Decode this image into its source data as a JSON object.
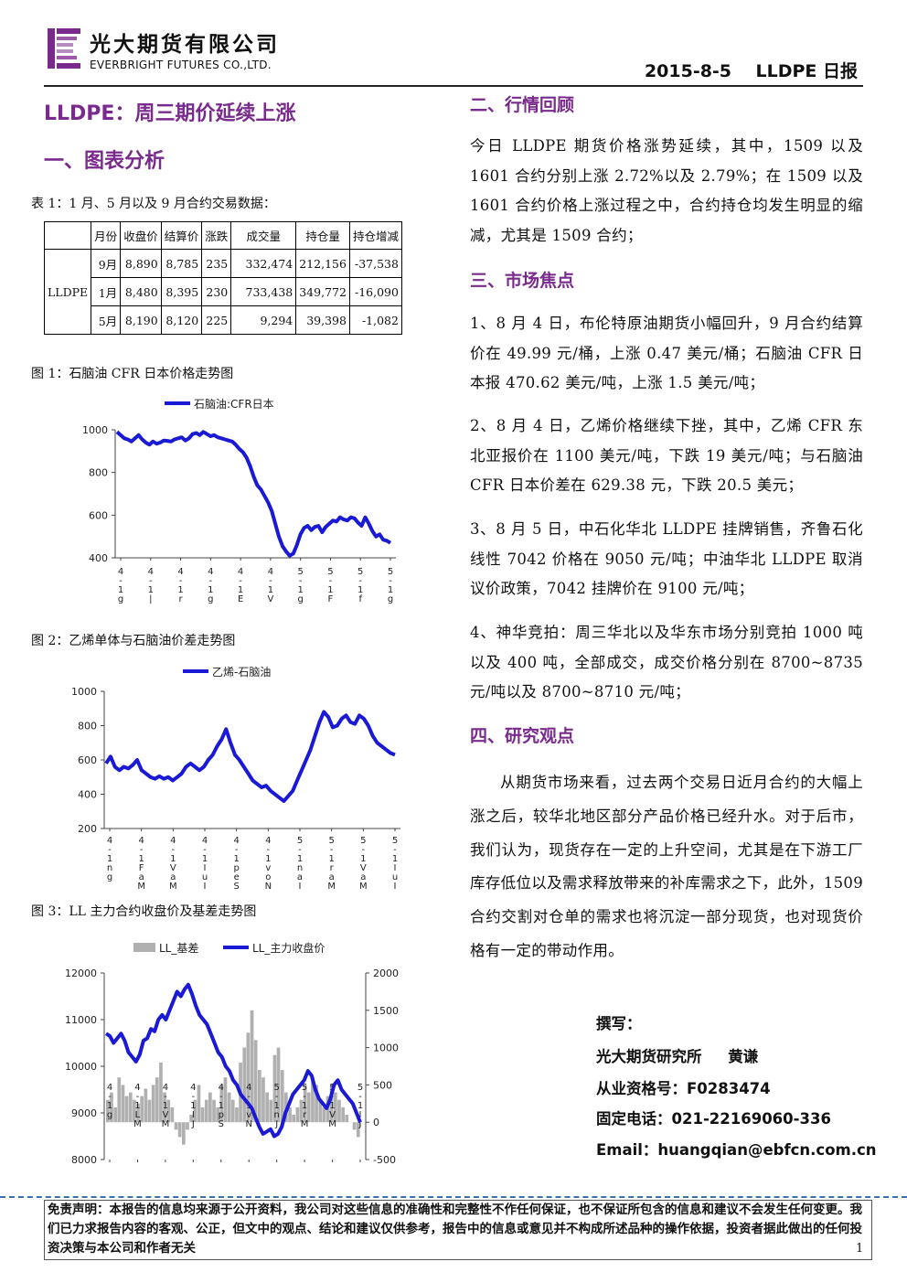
{
  "header": {
    "company_cn": "光大期货有限公司",
    "company_en": "EVERBRIGHT FUTURES CO.,LTD.",
    "report_id": "2015-8-5    LLDPE 日报",
    "logo_color": "#7a2a8c"
  },
  "title": "LLDPE：周三期价延续上涨",
  "section1": {
    "heading": "一、图表分析"
  },
  "table": {
    "caption": "表 1：1 月、5 月以及 9 月合约交易数据：",
    "headers": [
      "月份",
      "收盘价",
      "结算价",
      "涨跌",
      "成交量",
      "持仓量",
      "持仓增减"
    ],
    "product": "LLDPE",
    "rows": [
      [
        "9月",
        "8,890",
        "8,785",
        "235",
        "332,474",
        "212,156",
        "-37,538"
      ],
      [
        "1月",
        "8,480",
        "8,395",
        "230",
        "733,438",
        "349,772",
        "-16,090"
      ],
      [
        "5月",
        "8,190",
        "8,120",
        "225",
        "9,294",
        "39,398",
        "-1,082"
      ]
    ]
  },
  "chart_data": [
    {
      "type": "line",
      "caption": "图 1：石脑油 CFR 日本价格走势图",
      "series": [
        {
          "name": "石脑油:CFR日本",
          "color": "#1a1ad6"
        }
      ],
      "y_ticks": [
        "1000",
        "800",
        "600",
        "400"
      ],
      "ylim": [
        400,
        1000
      ],
      "x_tick_labels": [
        "4\n-\n1\ng",
        "4\n-\n1\n|",
        "4\n-\n1\nr",
        "4\n-\n1\ng",
        "4\n-\n1\nE",
        "4\n-\n1\nV",
        "5\n-\n1\ng",
        "5\n-\n1\nF",
        "5\n-\n1\nf",
        "5\n-\n1\ng"
      ],
      "points": [
        990,
        975,
        960,
        955,
        945,
        960,
        975,
        955,
        940,
        930,
        945,
        935,
        940,
        950,
        948,
        945,
        955,
        960,
        965,
        950,
        960,
        980,
        985,
        975,
        990,
        980,
        970,
        975,
        965,
        960,
        955,
        950,
        945,
        930,
        910,
        895,
        870,
        830,
        780,
        740,
        720,
        690,
        660,
        620,
        560,
        500,
        455,
        430,
        410,
        420,
        460,
        510,
        540,
        550,
        530,
        545,
        550,
        520,
        545,
        560,
        575,
        570,
        590,
        580,
        575,
        590,
        585,
        565,
        550,
        590,
        560,
        525,
        500,
        510,
        485,
        480,
        470
      ],
      "legend_position": "top"
    },
    {
      "type": "line",
      "caption": "图 2：乙烯单体与石脑油价差走势图",
      "series": [
        {
          "name": "乙烯-石脑油",
          "color": "#1a1ad6"
        }
      ],
      "y_ticks": [
        "1000",
        "800",
        "600",
        "400",
        "200"
      ],
      "ylim": [
        200,
        1000
      ],
      "x_tick_labels": [
        "4\n-\n1\nn\ng",
        "4\n-\n1\nF\na\nM",
        "4\n-\n1\nV\na\nM",
        "4\n-\n1\nI\nu\nJ",
        "4\n-\n1\np\ne\nS",
        "4\n-\n1\nv\no\nN",
        "5\n-\n1\nn\na\nJ",
        "5\n-\n1\nr\na\nM",
        "5\n-\n1\nV\na\nM",
        "5\n-\n1\nI\nu\nJ"
      ],
      "points": [
        580,
        620,
        560,
        540,
        560,
        550,
        570,
        600,
        540,
        520,
        500,
        490,
        505,
        490,
        500,
        480,
        500,
        520,
        560,
        580,
        560,
        540,
        560,
        600,
        630,
        680,
        720,
        780,
        700,
        630,
        600,
        560,
        520,
        480,
        460,
        440,
        450,
        420,
        400,
        380,
        360,
        390,
        420,
        480,
        540,
        600,
        660,
        740,
        820,
        880,
        850,
        790,
        800,
        840,
        860,
        820,
        810,
        860,
        840,
        800,
        740,
        700,
        680,
        660,
        640,
        630
      ],
      "legend_position": "top"
    },
    {
      "type": "line",
      "caption": "图 3：LL 主力合约收盘价及基差走势图",
      "series": [
        {
          "name": "LL_基差",
          "color": "#b0b0b0",
          "axis": "right"
        },
        {
          "name": "LL_主力收盘价",
          "color": "#1a1ad6",
          "axis": "left"
        }
      ],
      "y_ticks_left": [
        "12000",
        "11000",
        "10000",
        "9000",
        "8000"
      ],
      "y_ticks_right": [
        "2000",
        "1500",
        "1000",
        "500",
        "0",
        "-500"
      ],
      "ylim_left": [
        8000,
        12000
      ],
      "ylim_right": [
        -500,
        2000
      ],
      "x_tick_labels": [
        "4\n-\n1\ng",
        "4\n-\n1\nL\nM",
        "4\n-\n1\nV\nM",
        "4\n-\n1\nI\nJ",
        "4\n-\n1\np\nS",
        "4\n-\n1\nv\nN",
        "5\n-\n1\nn\nJ",
        "5\n-\n1\nr\nM",
        "5\n-\n1\nV\nM",
        "5\n-\n1\nI\nJ"
      ],
      "price": [
        10700,
        10650,
        10500,
        10600,
        10700,
        10550,
        10300,
        10200,
        10100,
        10250,
        10550,
        10600,
        10800,
        10750,
        11000,
        11100,
        11000,
        11200,
        11400,
        11600,
        11500,
        11650,
        11750,
        11550,
        11300,
        11100,
        11000,
        10900,
        10700,
        10500,
        10300,
        10200,
        10000,
        9900,
        9700,
        9600,
        9400,
        9300,
        9200,
        9100,
        8900,
        8700,
        8550,
        8600,
        8650,
        8500,
        8550,
        8700,
        9000,
        9200,
        9400,
        9500,
        9600,
        9700,
        9900,
        9800,
        9500,
        9300,
        9200,
        9100,
        9300,
        9600,
        9700,
        9500,
        9400,
        9300,
        9200,
        9000,
        8800
      ],
      "basis": [
        300,
        400,
        200,
        600,
        500,
        350,
        400,
        300,
        250,
        350,
        450,
        300,
        500,
        600,
        800,
        400,
        300,
        200,
        -100,
        -200,
        -300,
        -100,
        100,
        300,
        500,
        200,
        300,
        400,
        300,
        200,
        500,
        600,
        400,
        300,
        200,
        800,
        1000,
        1200,
        1500,
        1100,
        700,
        600,
        400,
        300,
        900,
        1000,
        700,
        400,
        200,
        100,
        200,
        300,
        500,
        400,
        600,
        500,
        300,
        200,
        350,
        500,
        400,
        300,
        200,
        100,
        0,
        -100,
        -200
      ],
      "legend_position": "top"
    }
  ],
  "section2": {
    "heading": "二、行情回顾",
    "para": "今日 LLDPE 期货价格涨势延续，其中，1509 以及 1601 合约分别上涨 2.72%以及 2.79%；在 1509 以及 1601 合约价格上涨过程之中，合约持仓均发生明显的缩减，尤其是 1509 合约；"
  },
  "section3": {
    "heading": "三、市场焦点",
    "items": [
      "1、8 月 4 日，布伦特原油期货小幅回升，9 月合约结算价在 49.99 元/桶，上涨 0.47 美元/桶；石脑油 CFR 日本报 470.62 美元/吨，上涨 1.5 美元/吨；",
      "2、8 月 4 日，乙烯价格继续下挫，其中，乙烯 CFR 东北亚报价在 1100 美元/吨，下跌 19 美元/吨；与石脑油 CFR 日本价差在 629.38 元，下跌 20.5 美元；",
      "3、8 月 5 日，中石化华北 LLDPE 挂牌销售，齐鲁石化线性 7042 价格在 9050 元/吨；中油华北 LLDPE 取消议价政策，7042 挂牌价在 9100 元/吨；",
      "4、神华竞拍：周三华北以及华东市场分别竞拍 1000 吨以及 400 吨，全部成交，成交价格分别在 8700~8735 元/吨以及 8700~8710 元/吨；"
    ]
  },
  "section4": {
    "heading": "四、研究观点",
    "para": "从期货市场来看，过去两个交易日近月合约的大幅上涨之后，较华北地区部分产品价格已经升水。对于后市，我们认为，现货存在一定的上升空间，尤其是在下游工厂库存低位以及需求释放带来的补库需求之下，此外，1509 合约交割对仓单的需求也将沉淀一部分现货，也对现货价格有一定的带动作用。"
  },
  "author": {
    "label": "撰写：",
    "line1": "光大期货研究所     黄谦",
    "line2": "从业资格号：F0283474",
    "line3": "固定电话：021-22169060-336",
    "line4": "Email：huangqian@ebfcn.com.cn"
  },
  "disclaimer": "免责声明：本报告的信息均来源于公开资料，我公司对这些信息的准确性和完整性不作任何保证，也不保证所包含的信息和建议不会发生任何变更。我们已力求报告内容的客观、公正，但文中的观点、结论和建议仅供参考，报告中的信息或意见并不构成所述品种的操作依据，投资者据此做出的任何投资决策与本公司和作者无关",
  "page_number": "1"
}
